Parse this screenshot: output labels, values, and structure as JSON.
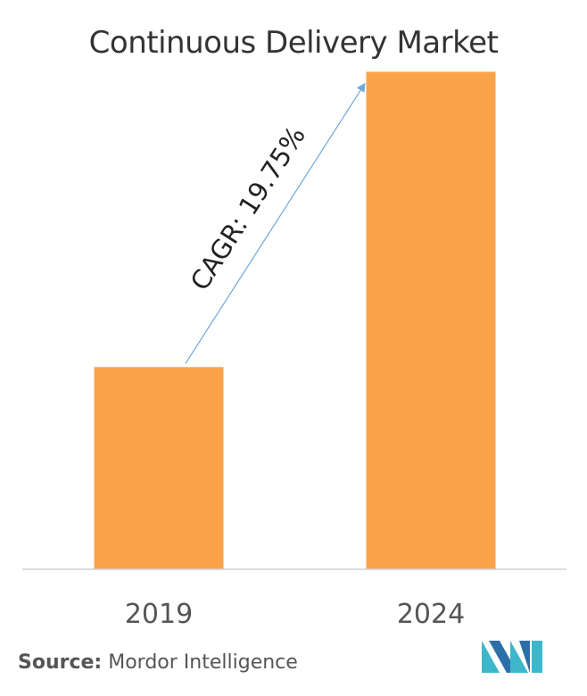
{
  "chart_data": {
    "type": "bar",
    "title": "Continuous Delivery Market",
    "categories": [
      "2019",
      "2024"
    ],
    "values": [
      1.0,
      2.46
    ],
    "ylim": [
      0,
      2.55
    ],
    "xlabel": "",
    "ylabel": "",
    "grid": false,
    "legend": "none",
    "annotation": {
      "text": "CAGR: 19.75%",
      "from": "2019",
      "to": "2024"
    },
    "bar_color": "#FBA34A",
    "arrow_color": "#6FA8DC",
    "axis_color": "#D0D0D0"
  },
  "source": {
    "prefix": "Source:",
    "text": "Mordor Intelligence"
  },
  "logo": {
    "icon": "mordor-intelligence-logo-icon",
    "colors": [
      "#3DB7C9",
      "#2A6FA8"
    ]
  }
}
